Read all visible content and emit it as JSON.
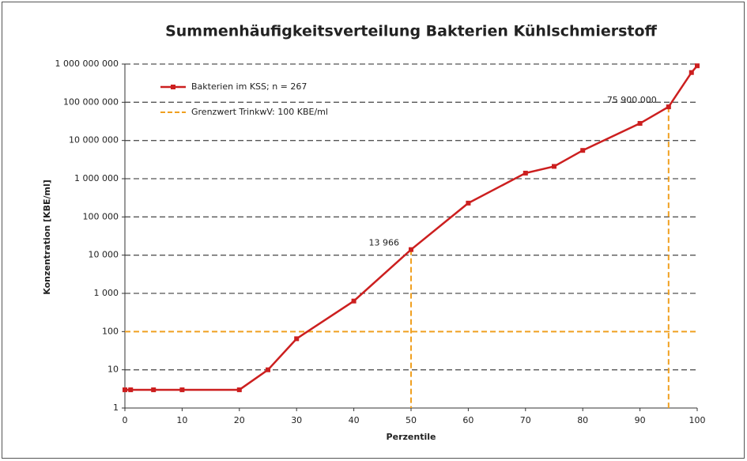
{
  "chart_data": {
    "type": "line",
    "title": "Summenhäufigkeitsverteilung Bakterien Kühlschmierstoff",
    "x_label": "Perzentile",
    "y_label": "Konzentration [KBE/ml]",
    "log_y": true,
    "grid": true,
    "xlim": [
      0,
      100
    ],
    "xticks": [
      0,
      10,
      20,
      30,
      40,
      50,
      60,
      70,
      80,
      90,
      100
    ],
    "ylim": [
      1,
      1000000000
    ],
    "yticks": [
      1,
      10,
      100,
      {
        "value": 1000,
        "label": "1 000"
      },
      {
        "value": 10000,
        "label": "10 000"
      },
      {
        "value": 100000,
        "label": "100 000"
      },
      {
        "value": 1000000,
        "label": "1 000 000"
      },
      {
        "value": 10000000,
        "label": "10 000 000"
      },
      {
        "value": 100000000,
        "label": "100 000 000"
      },
      {
        "value": 1000000000,
        "label": "1 000 000 000"
      }
    ],
    "series": [
      {
        "name": "Bakterien im KSS; n = 267",
        "color": "#cc1f1f",
        "x": [
          0,
          1,
          5,
          10,
          20,
          25,
          30,
          40,
          50,
          60,
          70,
          75,
          80,
          90,
          95,
          99,
          100
        ],
        "values": [
          3,
          3,
          3,
          3,
          3,
          10,
          65,
          630,
          13966,
          230000,
          1400000,
          2100000,
          5500000,
          28000000,
          75900000,
          600000000,
          900000000
        ]
      }
    ],
    "reference_line": {
      "name": "Grenzwert TrinkwV: 100 KBE/ml",
      "value": 100,
      "color": "#f0a020"
    },
    "annotations": [
      {
        "text": "13 966",
        "x": 50,
        "y": 13966
      },
      {
        "text": "75 900 000",
        "x": 95,
        "y": 75900000
      }
    ]
  }
}
